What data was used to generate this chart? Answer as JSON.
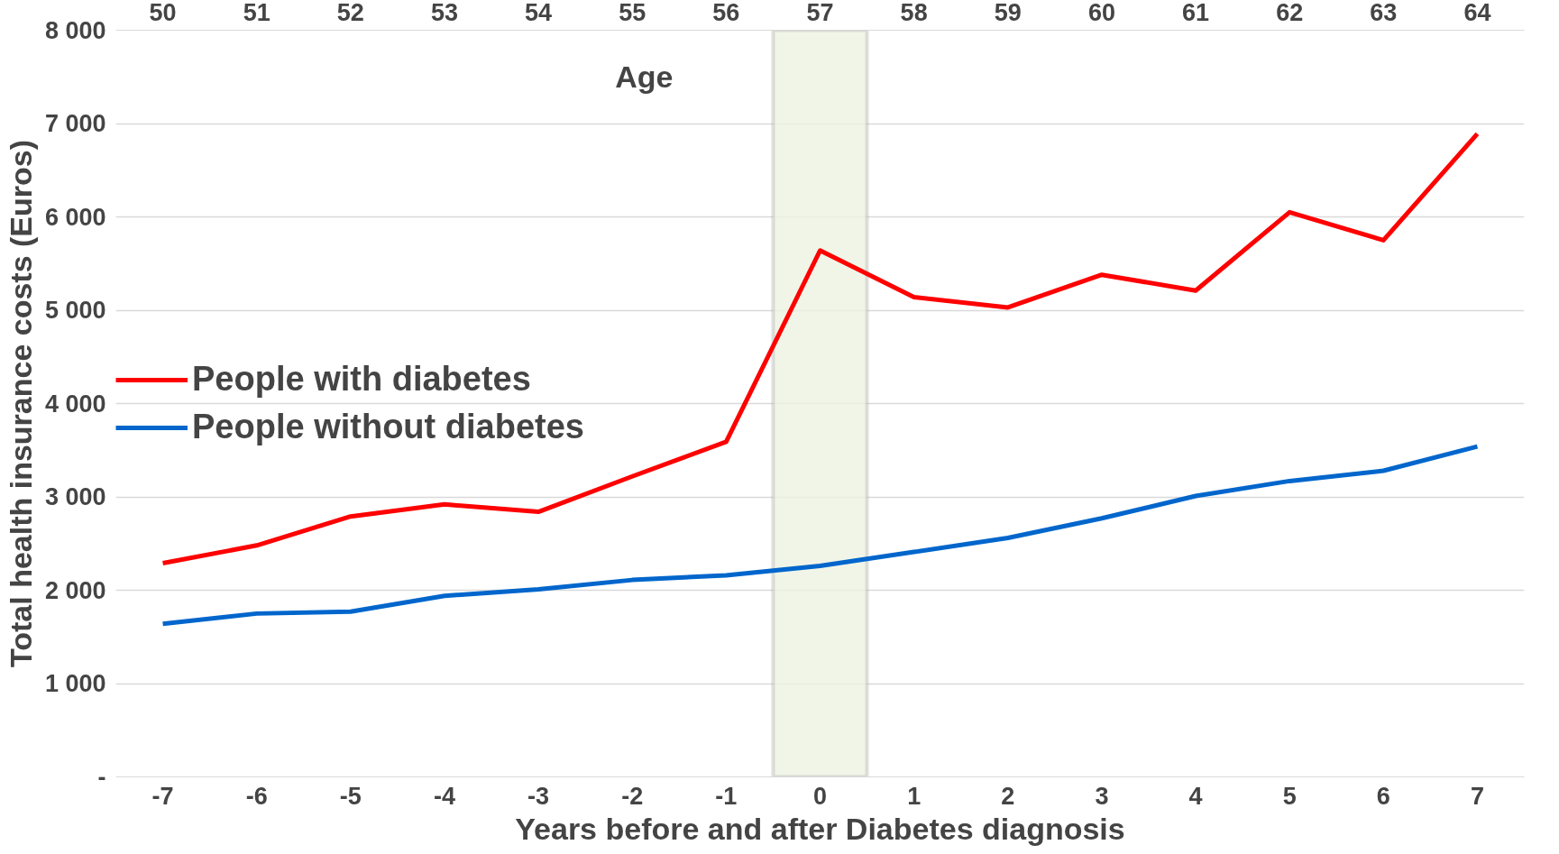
{
  "chart_data": {
    "type": "line",
    "xlabel": "Years before and after Diabetes diagnosis",
    "ylabel": "Total health insurance costs (Euros)",
    "x2label": "Age",
    "x": [
      -7,
      -6,
      -5,
      -4,
      -3,
      -2,
      -1,
      0,
      1,
      2,
      3,
      4,
      5,
      6,
      7
    ],
    "series": [
      {
        "name": "People with diabetes",
        "color": "#ff0000",
        "values": [
          2290,
          2480,
          2790,
          2920,
          2840,
          3220,
          3590,
          5640,
          5140,
          5030,
          5380,
          5210,
          6050,
          5750,
          6890
        ]
      },
      {
        "name": "People without diabetes",
        "color": "#0066cc",
        "values": [
          1640,
          1750,
          1770,
          1940,
          2010,
          2110,
          2160,
          2260,
          2410,
          2560,
          2770,
          3010,
          3170,
          3280,
          3540
        ]
      }
    ],
    "xlim": [
      -7.5,
      7.5
    ],
    "xticks": [
      -7,
      -6,
      -5,
      -4,
      -3,
      -2,
      -1,
      0,
      1,
      2,
      3,
      4,
      5,
      6,
      7
    ],
    "x2lim": [
      49.5,
      64.5
    ],
    "x2ticks": [
      50,
      51,
      52,
      53,
      54,
      55,
      56,
      57,
      58,
      59,
      60,
      61,
      62,
      63,
      64
    ],
    "ylim": [
      0,
      8000
    ],
    "yticks": [
      {
        "value": 0,
        "label": "-"
      },
      {
        "value": 1000,
        "label": "1 000"
      },
      {
        "value": 2000,
        "label": "2 000"
      },
      {
        "value": 3000,
        "label": "3 000"
      },
      {
        "value": 4000,
        "label": "4 000"
      },
      {
        "value": 5000,
        "label": "5 000"
      },
      {
        "value": 6000,
        "label": "6 000"
      },
      {
        "value": 7000,
        "label": "7 000"
      },
      {
        "value": 8000,
        "label": "8 000"
      }
    ],
    "bands": [
      {
        "axis": "x",
        "from": -0.5,
        "to": 0.5,
        "color": "#eef3e2"
      }
    ],
    "grid": "y",
    "legend": "left",
    "marker": "none",
    "line_style": "solid"
  }
}
